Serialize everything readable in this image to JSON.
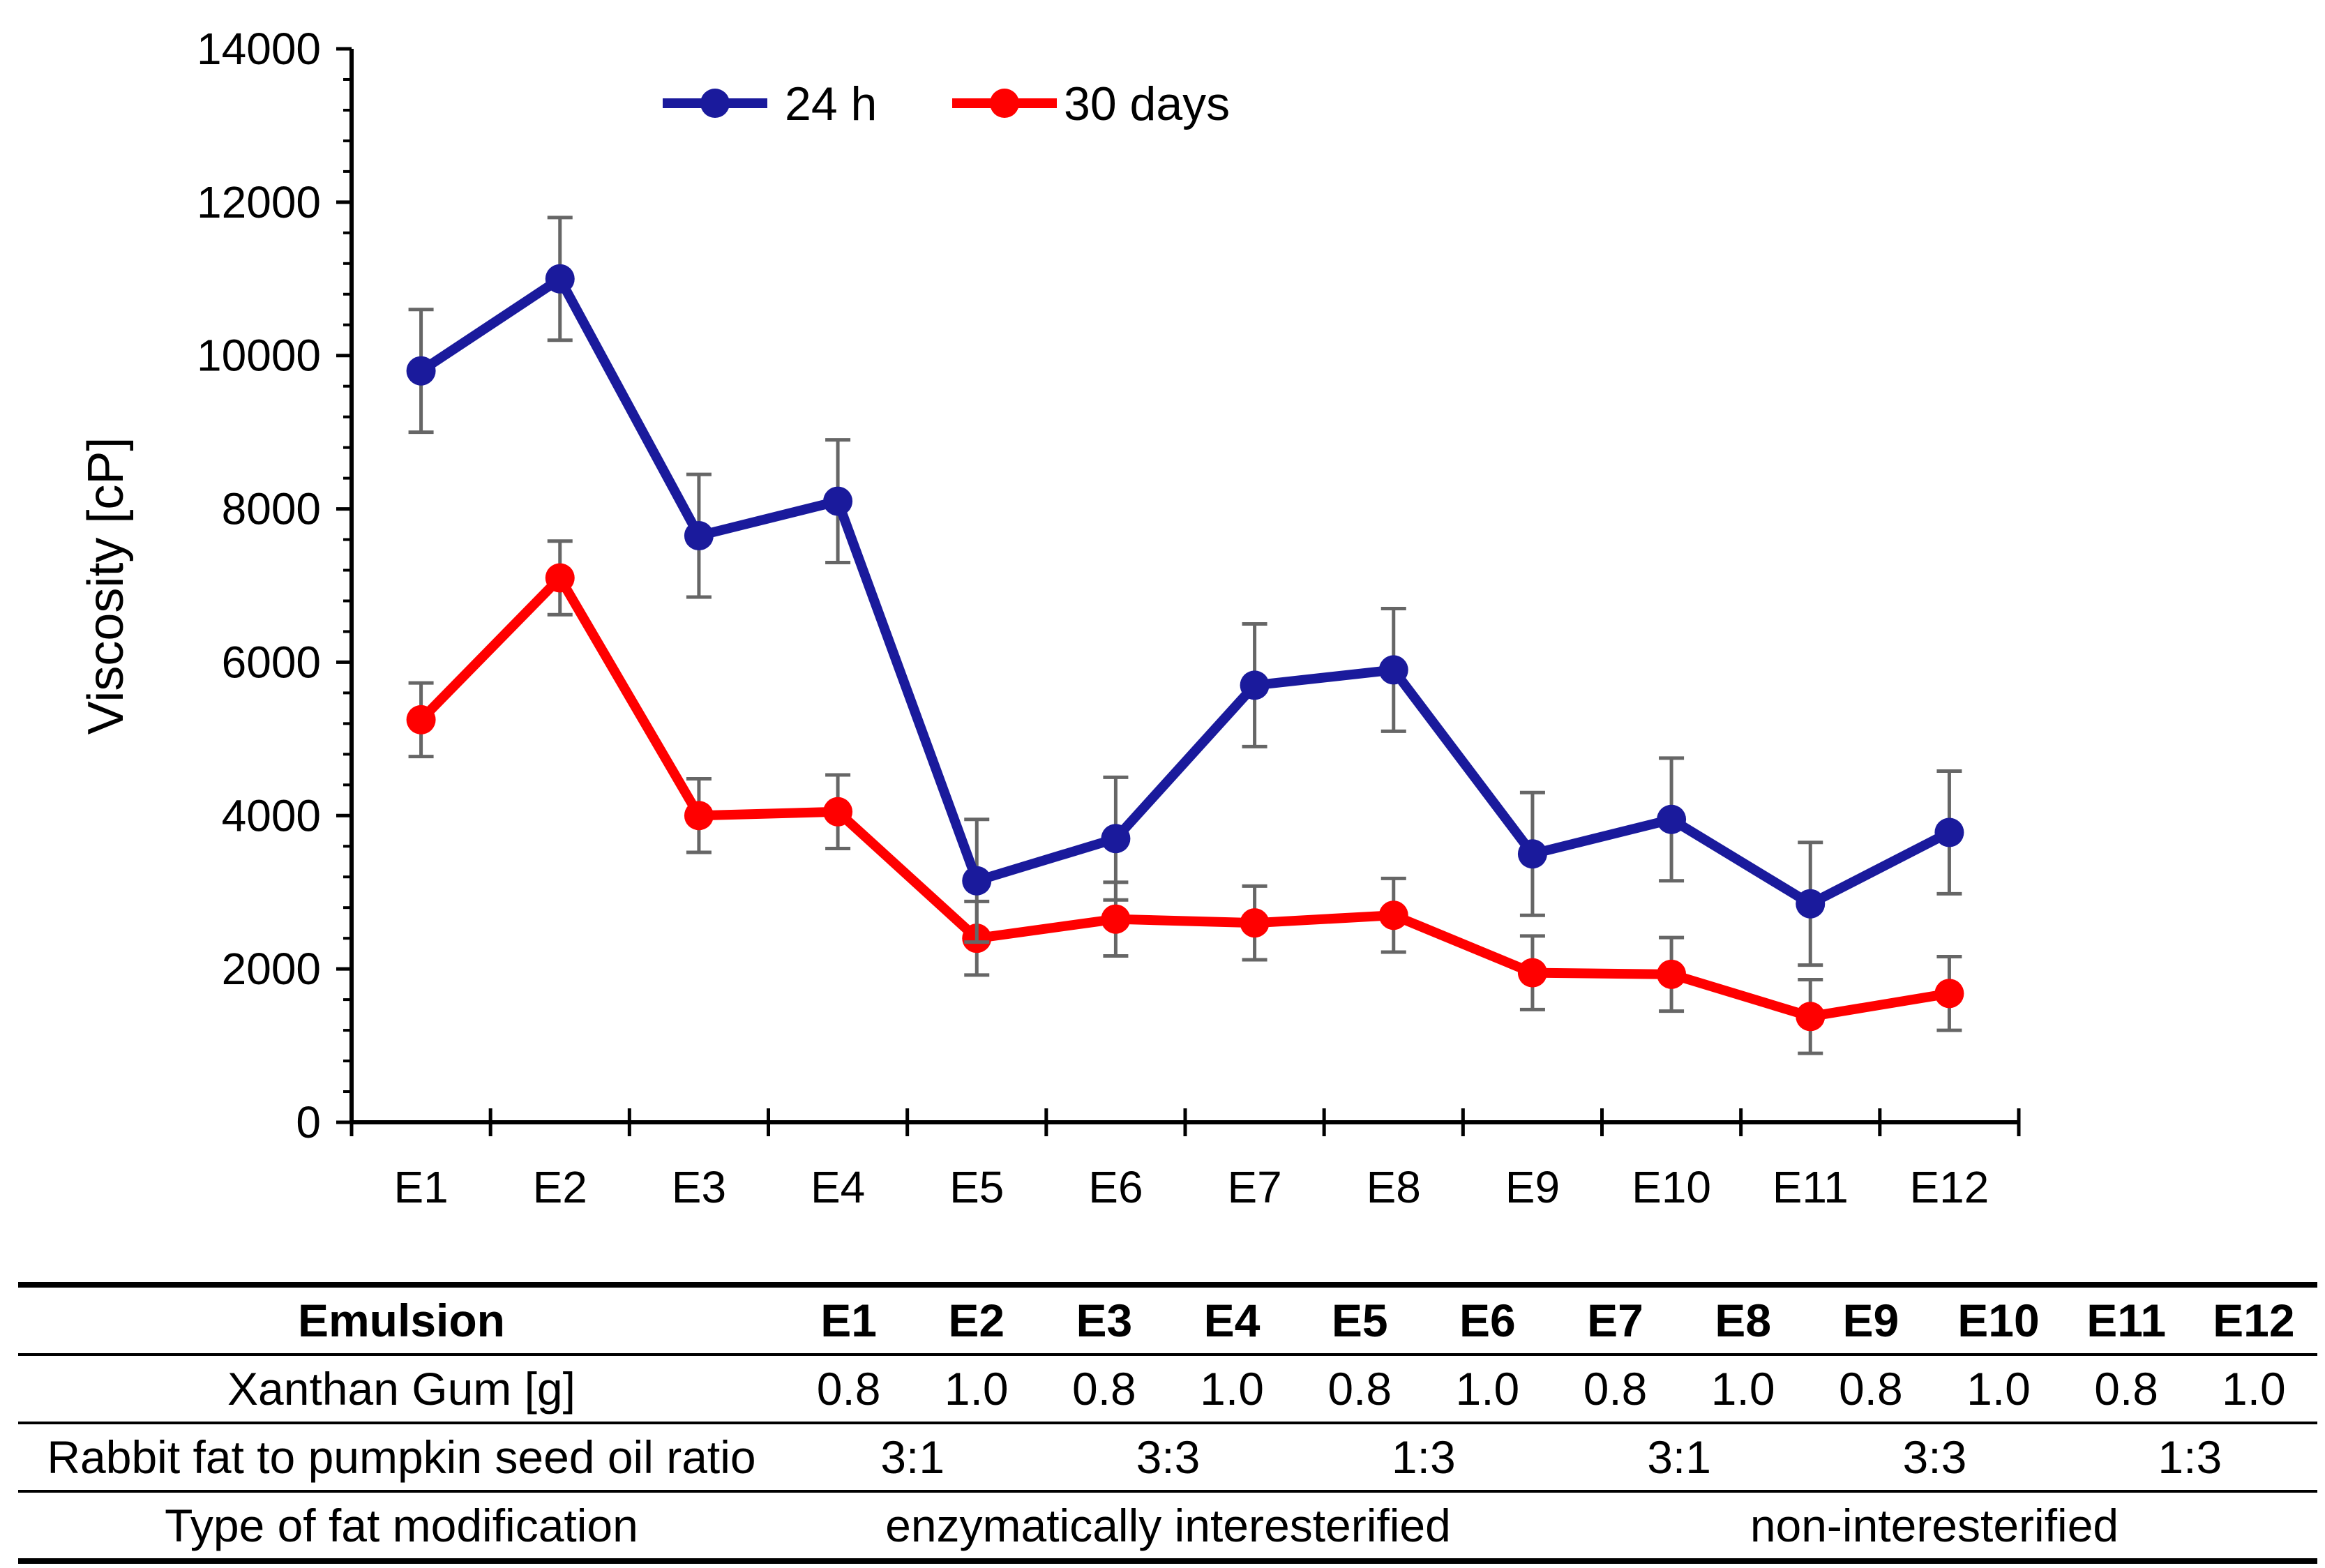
{
  "chart_data": {
    "type": "line",
    "title": "",
    "xlabel": "",
    "ylabel": "Viscosity  [cP]",
    "ylim": [
      0,
      14000
    ],
    "yticks": [
      0,
      2000,
      4000,
      6000,
      8000,
      10000,
      12000,
      14000
    ],
    "grid": false,
    "legend_position": "top-left",
    "categories": [
      "E1",
      "E2",
      "E3",
      "E4",
      "E5",
      "E6",
      "E7",
      "E8",
      "E9",
      "E10",
      "E11",
      "E12"
    ],
    "series": [
      {
        "name": "24 h",
        "color": "#1a1a9c",
        "values": [
          9800,
          11000,
          7650,
          8100,
          3150,
          3700,
          5700,
          5900,
          3500,
          3950,
          2850,
          3780
        ],
        "errors": [
          800,
          800,
          800,
          800,
          800,
          800,
          800,
          800,
          800,
          800,
          800,
          800
        ]
      },
      {
        "name": "30 days",
        "color": "#ff0000",
        "values": [
          5250,
          7100,
          4000,
          4050,
          2400,
          2650,
          2600,
          2700,
          1950,
          1930,
          1380,
          1680
        ],
        "errors": [
          480,
          480,
          480,
          480,
          480,
          480,
          480,
          480,
          480,
          480,
          480,
          480
        ]
      }
    ]
  },
  "table": {
    "header_label": "Emulsion",
    "columns": [
      "E1",
      "E2",
      "E3",
      "E4",
      "E5",
      "E6",
      "E7",
      "E8",
      "E9",
      "E10",
      "E11",
      "E12"
    ],
    "xanthan_label": "Xanthan Gum [g]",
    "xanthan_values": [
      "0.8",
      "1.0",
      "0.8",
      "1.0",
      "0.8",
      "1.0",
      "0.8",
      "1.0",
      "0.8",
      "1.0",
      "0.8",
      "1.0"
    ],
    "ratio_label": "Rabbit fat to pumpkin seed oil ratio",
    "ratio_values": [
      "3:1",
      "3:3",
      "1:3",
      "3:1",
      "3:3",
      "1:3"
    ],
    "type_label": "Type of fat modification",
    "type_values": [
      "enzymatically interesterified",
      "non-interesterified"
    ]
  }
}
